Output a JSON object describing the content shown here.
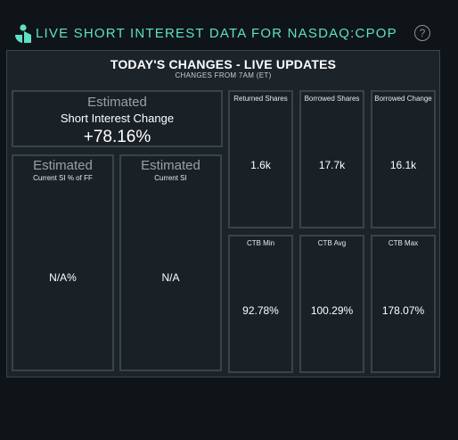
{
  "header": {
    "title": "LIVE SHORT INTEREST DATA FOR NASDAQ:CPOP",
    "help_symbol": "?",
    "logo_icon": "logo-icon",
    "accent_color": "#5fe0c4"
  },
  "panel": {
    "title": "TODAY'S CHANGES - LIVE UPDATES",
    "subtitle": "CHANGES FROM 7AM (ET)"
  },
  "si_change": {
    "estimated": "Estimated",
    "label": "Short Interest Change",
    "value": "+78.16%"
  },
  "si_pct_ff": {
    "estimated": "Estimated",
    "label": "Current SI % of FF",
    "value": "N/A%"
  },
  "current_si": {
    "estimated": "Estimated",
    "label": "Current SI",
    "value": "N/A"
  },
  "returned_shares": {
    "label": "Returned Shares",
    "value": "1.6k"
  },
  "borrowed_shares": {
    "label": "Borrowed Shares",
    "value": "17.7k"
  },
  "borrowed_change": {
    "label": "Borrowed Change",
    "value": "16.1k"
  },
  "ctb_min": {
    "label": "CTB Min",
    "value": "92.78%"
  },
  "ctb_avg": {
    "label": "CTB Avg",
    "value": "100.29%"
  },
  "ctb_max": {
    "label": "CTB Max",
    "value": "178.07%"
  }
}
